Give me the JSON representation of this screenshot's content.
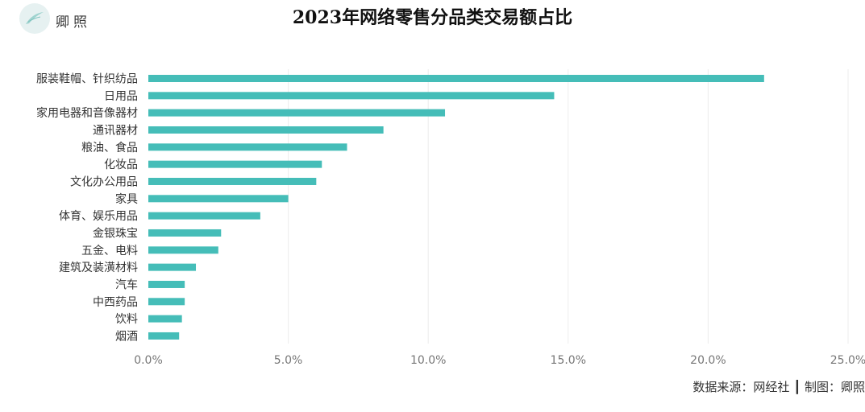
{
  "header": {
    "logo_text": "卿照",
    "title": "2023年网络零售分品类交易额占比"
  },
  "footer": {
    "source": "数据来源：网经社 ┃ 制图：卿照"
  },
  "colors": {
    "bar": "#45bdb8",
    "grid": "#ececec",
    "tick_text": "#777777",
    "label_text": "#333333"
  },
  "chart_data": {
    "type": "bar",
    "orientation": "horizontal",
    "title": "2023年网络零售分品类交易额占比",
    "categories": [
      "服装鞋帽、针织纺品",
      "日用品",
      "家用电器和音像器材",
      "通讯器材",
      "粮油、食品",
      "化妆品",
      "文化办公用品",
      "家具",
      "体育、娱乐用品",
      "金银珠宝",
      "五金、电料",
      "建筑及装潢材料",
      "汽车",
      "中西药品",
      "饮料",
      "烟酒"
    ],
    "values": [
      22.0,
      14.5,
      10.6,
      8.4,
      7.1,
      6.2,
      6.0,
      5.0,
      4.0,
      2.6,
      2.5,
      1.7,
      1.3,
      1.3,
      1.2,
      1.1
    ],
    "xlim": [
      0,
      25
    ],
    "xticks": [
      0,
      5,
      10,
      15,
      20,
      25
    ],
    "xtick_labels": [
      "0.0%",
      "5.0%",
      "10.0%",
      "15.0%",
      "20.0%",
      "25.0%"
    ],
    "grid": true,
    "legend": "none"
  }
}
